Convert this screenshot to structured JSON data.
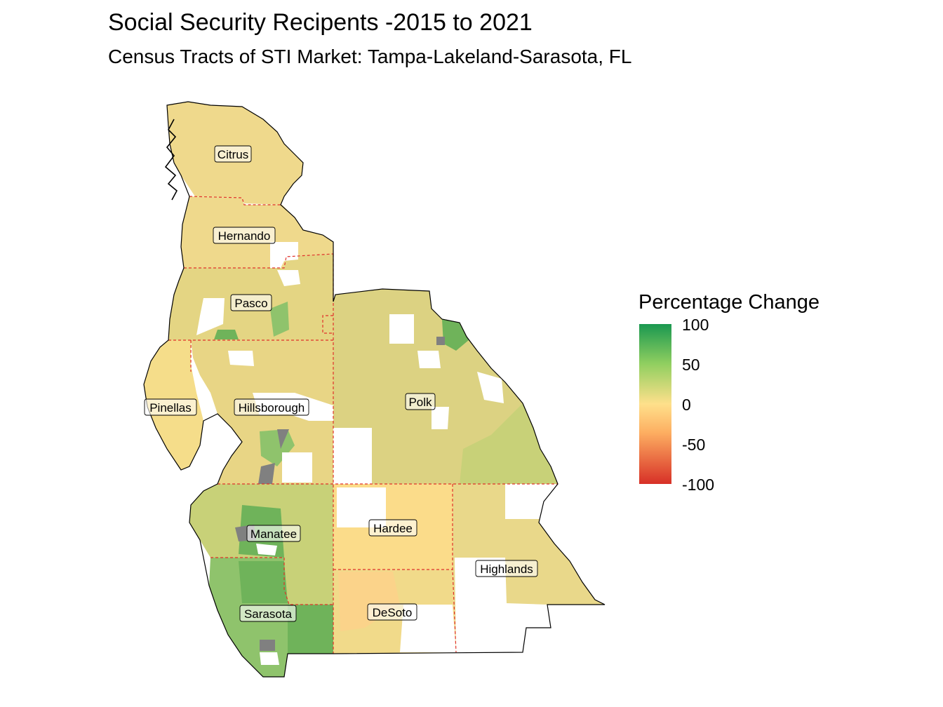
{
  "title": "Social Security Recipents -2015 to 2021",
  "subtitle": "Census Tracts of STI Market: Tampa-Lakeland-Sarasota, FL",
  "legend": {
    "title": "Percentage Change",
    "ticks": [
      "100",
      "50",
      "0",
      "-50",
      "-100"
    ],
    "range": [
      -100,
      100
    ],
    "colors": {
      "high": "#1a9850",
      "mid_high": "#91cf60",
      "zero": "#fee08b",
      "mid_low": "#fdae61",
      "low": "#d73027",
      "no_data": "#808080"
    }
  },
  "counties": [
    {
      "name": "Citrus"
    },
    {
      "name": "Hernando"
    },
    {
      "name": "Pasco"
    },
    {
      "name": "Pinellas"
    },
    {
      "name": "Hillsborough"
    },
    {
      "name": "Polk"
    },
    {
      "name": "Manatee"
    },
    {
      "name": "Hardee"
    },
    {
      "name": "Highlands"
    },
    {
      "name": "Sarasota"
    },
    {
      "name": "DeSoto"
    }
  ]
}
